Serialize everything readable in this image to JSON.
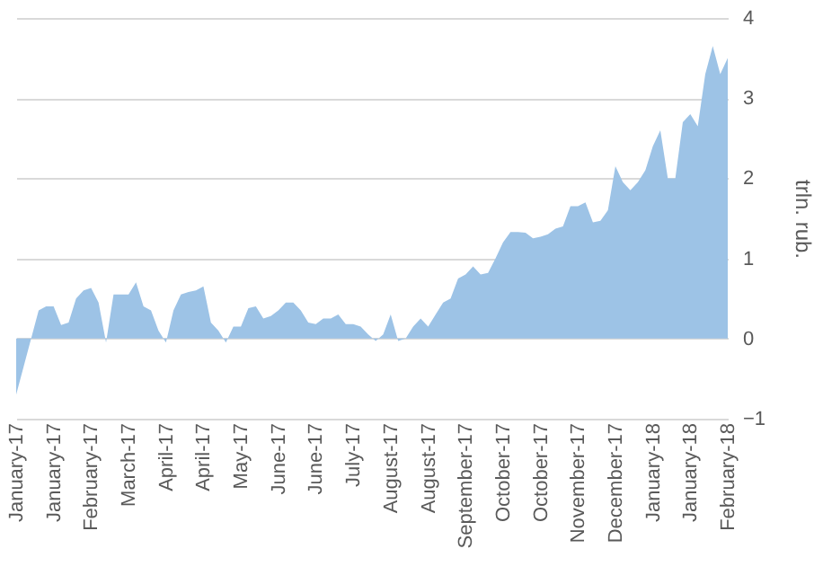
{
  "chart_data": {
    "type": "area",
    "ylabel": "trln. rub.",
    "categories": [
      "January-17",
      null,
      null,
      null,
      null,
      "January-17",
      null,
      null,
      null,
      null,
      "February-17",
      null,
      null,
      null,
      null,
      "March-17",
      null,
      null,
      null,
      null,
      "April-17",
      null,
      null,
      null,
      null,
      "April-17",
      null,
      null,
      null,
      null,
      "May-17",
      null,
      null,
      null,
      null,
      "June-17",
      null,
      null,
      null,
      null,
      "June-17",
      null,
      null,
      null,
      null,
      "July-17",
      null,
      null,
      null,
      null,
      "August-17",
      null,
      null,
      null,
      null,
      "August-17",
      null,
      null,
      null,
      null,
      "September-17",
      null,
      null,
      null,
      null,
      "October-17",
      null,
      null,
      null,
      null,
      "October-17",
      null,
      null,
      null,
      null,
      "November-17",
      null,
      null,
      null,
      null,
      "December-17",
      null,
      null,
      null,
      null,
      "January-18",
      null,
      null,
      null,
      null,
      "January-18",
      null,
      null,
      null,
      null,
      "February-18"
    ],
    "values": [
      -0.7,
      -0.35,
      0.0,
      0.35,
      0.4,
      0.4,
      0.17,
      0.2,
      0.5,
      0.6,
      0.63,
      0.45,
      -0.05,
      0.55,
      0.55,
      0.55,
      0.7,
      0.4,
      0.35,
      0.1,
      -0.05,
      0.35,
      0.55,
      0.58,
      0.6,
      0.65,
      0.2,
      0.1,
      -0.05,
      0.15,
      0.15,
      0.38,
      0.4,
      0.25,
      0.28,
      0.35,
      0.45,
      0.45,
      0.35,
      0.2,
      0.18,
      0.25,
      0.25,
      0.3,
      0.18,
      0.18,
      0.15,
      0.05,
      -0.03,
      0.05,
      0.3,
      -0.03,
      0.0,
      0.15,
      0.25,
      0.15,
      0.3,
      0.45,
      0.5,
      0.75,
      0.8,
      0.9,
      0.8,
      0.82,
      1.0,
      1.2,
      1.33,
      1.33,
      1.32,
      1.25,
      1.27,
      1.3,
      1.37,
      1.4,
      1.65,
      1.65,
      1.7,
      1.45,
      1.47,
      1.6,
      2.15,
      1.95,
      1.85,
      1.95,
      2.1,
      2.4,
      2.6,
      2.0,
      2.0,
      2.7,
      2.8,
      2.65,
      3.3,
      3.65,
      3.3,
      3.5
    ],
    "color": "#9dc3e6",
    "ylim": [
      -1,
      4
    ],
    "yticks": [
      -1,
      0,
      1,
      2,
      3,
      4
    ],
    "grid": "y"
  }
}
